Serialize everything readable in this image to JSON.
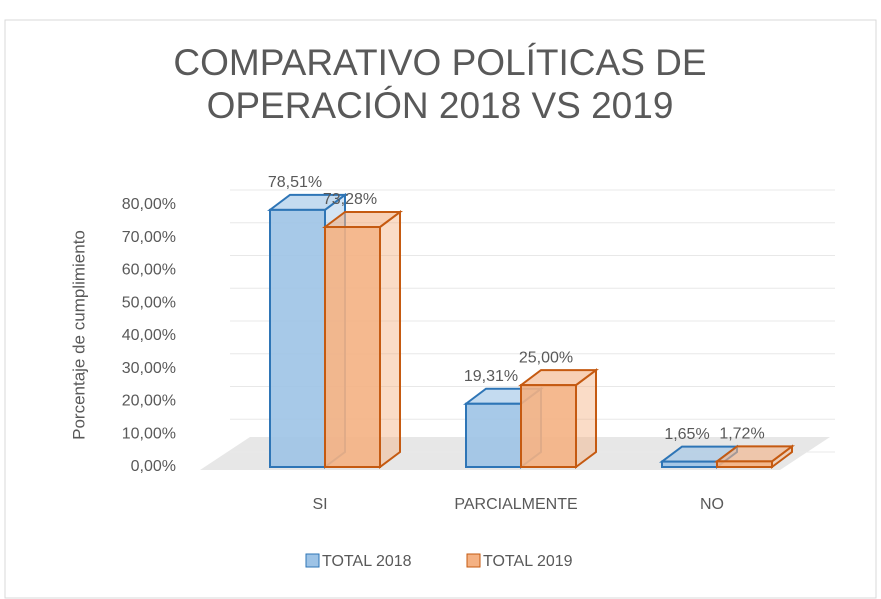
{
  "chart_data": {
    "type": "bar3d",
    "title": "COMPARATIVO POLÍTICAS DE OPERACIÓN 2018 VS 2019",
    "y_label": "Porcentaje de cumplimiento",
    "categories": [
      "SI",
      "PARCIALMENTE",
      "NO"
    ],
    "series": [
      {
        "name": "TOTAL 2018",
        "color": "#9dc3e6",
        "edge_color": "#2e75b6",
        "values": [
          78.51,
          19.31,
          1.65
        ],
        "value_labels": [
          "78,51%",
          "19,31%",
          "1,65%"
        ]
      },
      {
        "name": "TOTAL 2019",
        "color": "#f4b183",
        "edge_color": "#c55a11",
        "values": [
          73.28,
          25.0,
          1.72
        ],
        "value_labels": [
          "73,28%",
          "25,00%",
          "1,72%"
        ]
      }
    ],
    "ylim": [
      0,
      80
    ],
    "yticks": [
      {
        "value": 0,
        "label": "0,00%"
      },
      {
        "value": 10,
        "label": "10,00%"
      },
      {
        "value": 20,
        "label": "20,00%"
      },
      {
        "value": 30,
        "label": "30,00%"
      },
      {
        "value": 40,
        "label": "40,00%"
      },
      {
        "value": 50,
        "label": "50,00%"
      },
      {
        "value": 60,
        "label": "60,00%"
      },
      {
        "value": 70,
        "label": "70,00%"
      },
      {
        "value": 80,
        "label": "80,00%"
      }
    ],
    "grid": true,
    "legend": "bottom"
  }
}
